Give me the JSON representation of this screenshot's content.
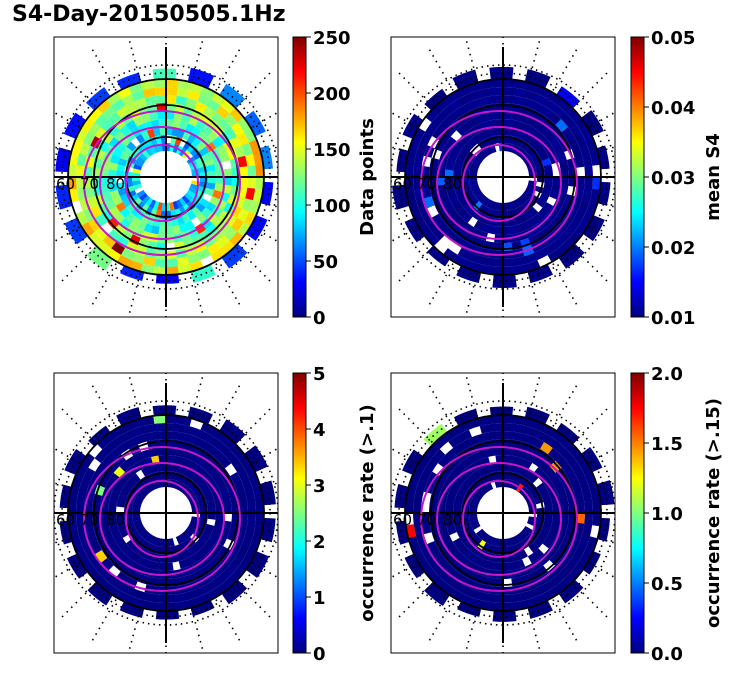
{
  "figure": {
    "title": "S4-Day-20150505.1Hz"
  },
  "colormap": [
    "#00007f",
    "#0000ff",
    "#007fff",
    "#00ffff",
    "#7fff7f",
    "#ffff00",
    "#ff7f00",
    "#ff0000",
    "#7f0000"
  ],
  "panel_style": {
    "frame_color": "#000000",
    "oval_color": "#c815c8"
  },
  "chart_data": [
    {
      "type": "heatmap",
      "projection": "polar",
      "title": "",
      "colorbar": {
        "label": "Data points",
        "range": [
          0,
          250
        ],
        "ticks": [
          0,
          50,
          100,
          150,
          200,
          250
        ]
      },
      "lat_circle_labels": [
        "60",
        "70",
        "80"
      ],
      "field": "count"
    },
    {
      "type": "heatmap",
      "projection": "polar",
      "title": "",
      "colorbar": {
        "label": "mean S4",
        "range": [
          0.01,
          0.05
        ],
        "ticks": [
          "0.01",
          "0.02",
          "0.03",
          "0.04",
          "0.05"
        ]
      },
      "lat_circle_labels": [
        "60",
        "70",
        "80"
      ],
      "field": "mean_s4"
    },
    {
      "type": "heatmap",
      "projection": "polar",
      "title": "",
      "colorbar": {
        "label": "occurrence rate (>.1)",
        "range": [
          0,
          5
        ],
        "ticks": [
          0,
          1,
          2,
          3,
          4,
          5
        ]
      },
      "lat_circle_labels": [
        "60",
        "70",
        "80"
      ],
      "field": "occ_rate_0.1"
    },
    {
      "type": "heatmap",
      "projection": "polar",
      "title": "",
      "colorbar": {
        "label": "occurrence rate (>.15)",
        "range": [
          0,
          2
        ],
        "ticks": [
          "0.0",
          "0.5",
          "1.0",
          "1.5",
          "2.0"
        ]
      },
      "lat_circle_labels": [
        "60",
        "70",
        "80"
      ],
      "field": "occ_rate_0.15"
    }
  ]
}
